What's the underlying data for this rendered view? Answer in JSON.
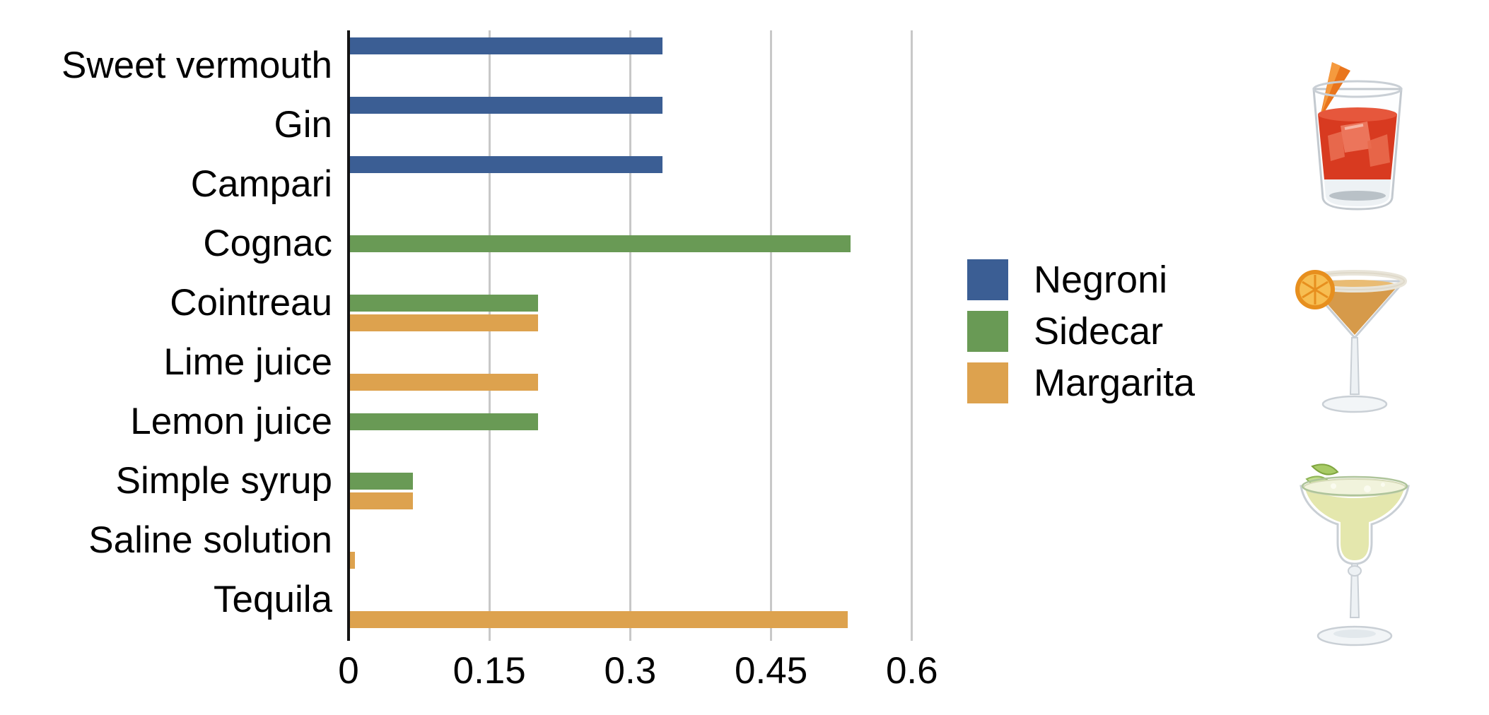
{
  "chart_data": {
    "type": "bar",
    "orientation": "horizontal",
    "title": "",
    "xlabel": "",
    "ylabel": "",
    "categories": [
      "Sweet vermouth",
      "Gin",
      "Campari",
      "Cognac",
      "Cointreau",
      "Lime juice",
      "Lemon juice",
      "Simple syrup",
      "Saline solution",
      "Tequila"
    ],
    "series": [
      {
        "name": "Negroni",
        "color": "#3B5E94",
        "values": [
          0.333,
          0.333,
          0.333,
          null,
          null,
          null,
          null,
          null,
          null,
          null
        ]
      },
      {
        "name": "Sidecar",
        "color": "#699A55",
        "values": [
          null,
          null,
          null,
          0.533,
          0.2,
          null,
          0.2,
          0.067,
          null,
          null
        ]
      },
      {
        "name": "Margarita",
        "color": "#DDA24E",
        "values": [
          null,
          null,
          null,
          null,
          0.2,
          0.2,
          null,
          0.067,
          0.005,
          0.53
        ]
      }
    ],
    "xlim": [
      0,
      0.6
    ],
    "x_ticks": [
      0,
      0.15,
      0.3,
      0.45,
      0.6
    ],
    "x_tick_labels": [
      "0",
      "0.15",
      "0.3",
      "0.45",
      "0.6"
    ],
    "grid": "vertical-gridlines",
    "gridline_color": "#c8c8c8",
    "axis_color": "#141414",
    "legend_position": "center-right"
  },
  "legend": {
    "items": [
      {
        "label": "Negroni",
        "color": "#3B5E94"
      },
      {
        "label": "Sidecar",
        "color": "#699A55"
      },
      {
        "label": "Margarita",
        "color": "#DDA24E"
      }
    ]
  },
  "photos": {
    "negroni": {
      "icon": "negroni-rocks-glass-photo",
      "glass": "rocks-glass",
      "drink_color": "#D83A20",
      "garnish": "orange-peel"
    },
    "sidecar": {
      "icon": "sidecar-martini-glass-photo",
      "glass": "martini-glass",
      "drink_color": "#D69A4A",
      "garnish": "orange-slice-sugar-rim"
    },
    "margarita": {
      "icon": "margarita-glass-photo",
      "glass": "margarita-glass",
      "drink_color": "#E4E7AD",
      "garnish": "lime-wedge"
    }
  }
}
